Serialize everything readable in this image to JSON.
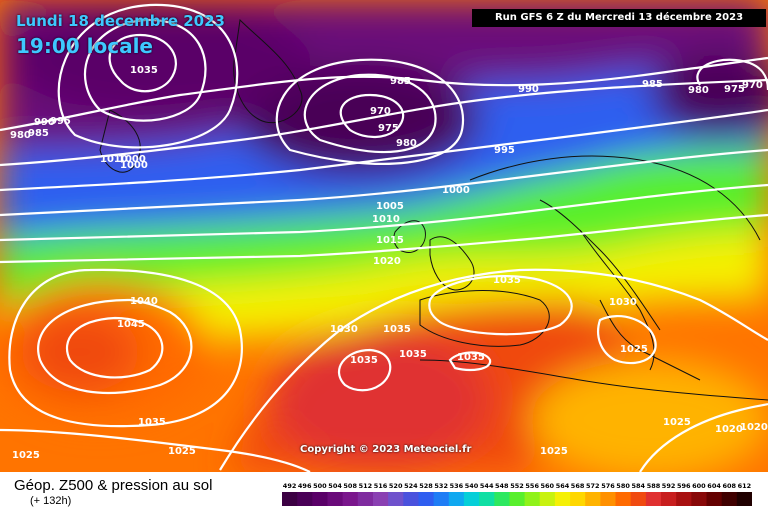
{
  "header": {
    "date": "Lundi 18 decembre 2023",
    "time": "19:00 locale",
    "run": "Run GFS 6 Z du Mercredi 13 décembre 2023"
  },
  "copyright": "Copyright © 2023 Meteociel.fr",
  "footer": {
    "title": "Géop. Z500 & pression au sol",
    "subtitle": "(+ 132h)"
  },
  "legend": {
    "labels": [
      "492",
      "496",
      "500",
      "504",
      "508",
      "512",
      "516",
      "520",
      "524",
      "528",
      "532",
      "536",
      "540",
      "544",
      "548",
      "552",
      "556",
      "560",
      "564",
      "568",
      "572",
      "576",
      "580",
      "584",
      "588",
      "592",
      "596",
      "600",
      "604",
      "608",
      "612"
    ],
    "colors": [
      "#3c0043",
      "#4a0057",
      "#5a0068",
      "#6a0a7a",
      "#7a168c",
      "#7f2b9f",
      "#8a40b2",
      "#6f52cc",
      "#4a52dd",
      "#2f5ef0",
      "#1f7df5",
      "#0fa8f0",
      "#05cfd8",
      "#10dfa4",
      "#2de860",
      "#58ef2c",
      "#8ff21a",
      "#c8f20f",
      "#f5f006",
      "#ffd700",
      "#ffb300",
      "#ff9000",
      "#ff6a00",
      "#f04a10",
      "#e03030",
      "#c81e1e",
      "#a81010",
      "#880808",
      "#640000",
      "#400000",
      "#200000"
    ]
  },
  "isobars": [
    {
      "value": "1035"
    },
    {
      "value": "1025"
    },
    {
      "value": "1020"
    },
    {
      "value": "1015"
    },
    {
      "value": "1010"
    },
    {
      "value": "1005"
    },
    {
      "value": "1000"
    },
    {
      "value": "995"
    },
    {
      "value": "990"
    },
    {
      "value": "985"
    },
    {
      "value": "980"
    },
    {
      "value": "975"
    },
    {
      "value": "970"
    },
    {
      "value": "1040"
    },
    {
      "value": "1045"
    },
    {
      "value": "1030"
    },
    {
      "value": "1035"
    },
    {
      "value": "1035"
    },
    {
      "value": "1035"
    },
    {
      "value": "1035"
    },
    {
      "value": "1035"
    },
    {
      "value": "1030"
    },
    {
      "value": "1025"
    },
    {
      "value": "1025"
    },
    {
      "value": "1025"
    },
    {
      "value": "1020"
    },
    {
      "value": "1020"
    },
    {
      "value": "1010"
    },
    {
      "value": "1000"
    },
    {
      "value": "990"
    },
    {
      "value": "985"
    },
    {
      "value": "980"
    },
    {
      "value": "975"
    },
    {
      "value": "970"
    },
    {
      "value": "985"
    },
    {
      "value": "980"
    },
    {
      "value": "995"
    },
    {
      "value": "1035"
    },
    {
      "value": "1000"
    },
    {
      "value": "1025"
    }
  ]
}
